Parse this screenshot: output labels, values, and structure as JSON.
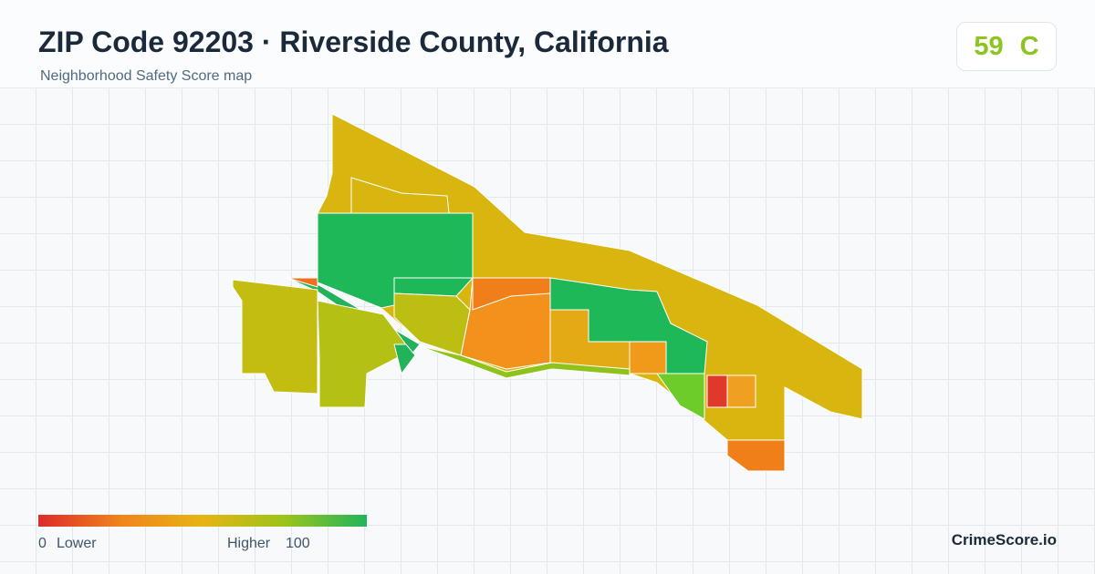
{
  "header": {
    "title": "ZIP Code 92203 · Riverside County, California",
    "subtitle": "Neighborhood Safety Score map"
  },
  "score": {
    "value": 59,
    "grade": "C"
  },
  "legend": {
    "min": 0,
    "min_label": "Lower",
    "max_label": "Higher",
    "max": 100
  },
  "brand": "CrimeScore.io"
}
